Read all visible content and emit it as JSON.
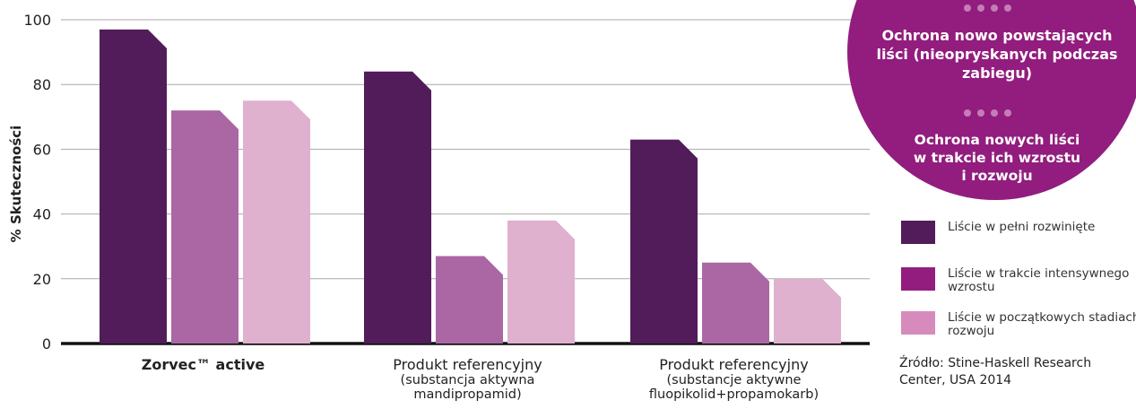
{
  "chart_data": {
    "type": "bar",
    "title": "",
    "ylabel": "% Skuteczności",
    "ylim": [
      0,
      100
    ],
    "yticks": [
      0,
      20,
      40,
      60,
      80,
      100
    ],
    "grid": true,
    "categories": [
      {
        "lines": [
          "Zorvec™ active"
        ],
        "bold": true
      },
      {
        "lines": [
          "Produkt referencyjny",
          "(substancja aktywna",
          "mandipropamid)"
        ],
        "bold": false
      },
      {
        "lines": [
          "Produkt referencyjny",
          "(substancje aktywne",
          "fluopikolid+propamokarb)"
        ],
        "bold": false
      }
    ],
    "series": [
      {
        "name": "Liście w pełni rozwinięte",
        "values": [
          97,
          84,
          63
        ]
      },
      {
        "name": "Liście w trakcie intensywnego wzrostu",
        "values": [
          72,
          27,
          25
        ]
      },
      {
        "name": "Liście w początkowych stadiach rozwoju",
        "values": [
          75,
          38,
          20
        ]
      }
    ],
    "legend_position": "right"
  },
  "colors": {
    "bars": [
      "#521c5a",
      "#ab67a3",
      "#e0b0cf"
    ],
    "legend_swatches": [
      "#521c5a",
      "#921d7e",
      "#d68bbc"
    ],
    "badge": "#921d7e",
    "dots": "#c47db7",
    "badge_text": "#ffffff"
  },
  "badge": {
    "text1_lines": [
      "Ochrona nowo powstających",
      "liści (nieopryskanych podczas",
      "zabiegu)"
    ],
    "text2_lines": [
      "Ochrona nowych liści",
      "w trakcie ich wzrostu",
      "i rozwoju"
    ]
  },
  "source": "Źródło: Stine-Haskell Research Center, USA 2014",
  "header_fragment": ""
}
